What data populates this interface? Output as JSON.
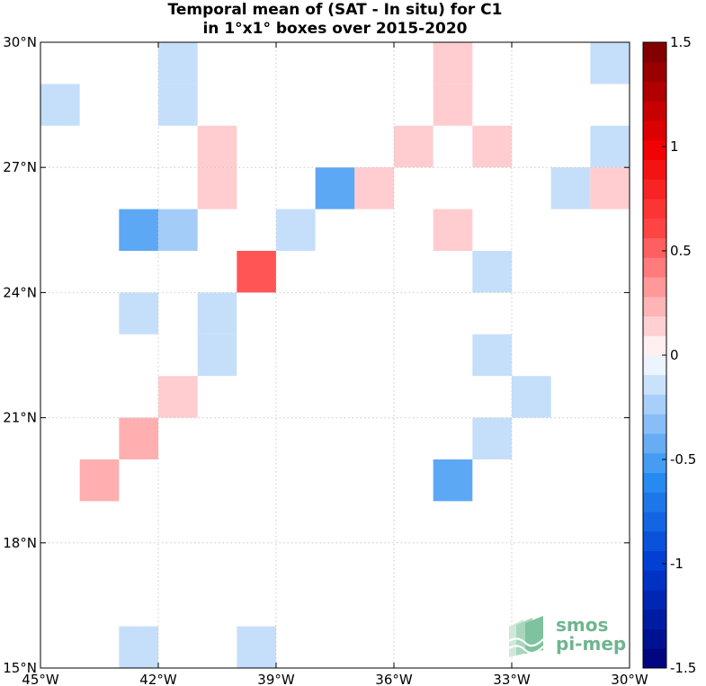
{
  "chart_data": {
    "type": "heatmap",
    "title": "Temporal mean of (SAT - In situ) for C1",
    "subtitle": "in 1°x1° boxes over 2015-2020",
    "x_range": [
      -45,
      -30
    ],
    "y_range": [
      15,
      30
    ],
    "x_ticks": [
      {
        "value": -45,
        "label": "45°W"
      },
      {
        "value": -42,
        "label": "42°W"
      },
      {
        "value": -39,
        "label": "39°W"
      },
      {
        "value": -36,
        "label": "36°W"
      },
      {
        "value": -33,
        "label": "33°W"
      },
      {
        "value": -30,
        "label": "30°W"
      }
    ],
    "y_ticks": [
      {
        "value": 30,
        "label": "30°N"
      },
      {
        "value": 27,
        "label": "27°N"
      },
      {
        "value": 24,
        "label": "24°N"
      },
      {
        "value": 21,
        "label": "21°N"
      },
      {
        "value": 18,
        "label": "18°N"
      },
      {
        "value": 15,
        "label": "15°N"
      }
    ],
    "grid": true,
    "colorbar": {
      "range": [
        -1.5,
        1.5
      ],
      "levels": 32,
      "ticks": [
        {
          "value": 1.5,
          "label": "1.5"
        },
        {
          "value": 1,
          "label": "1"
        },
        {
          "value": 0.5,
          "label": "0.5"
        },
        {
          "value": 0,
          "label": "0"
        },
        {
          "value": -0.5,
          "label": "-0.5"
        },
        {
          "value": -1,
          "label": "-1"
        },
        {
          "value": -1.5,
          "label": "-1.5"
        }
      ]
    },
    "cells": [
      {
        "lon": -45,
        "lat": 28,
        "value": -0.15
      },
      {
        "lon": -42,
        "lat": 29,
        "value": -0.15
      },
      {
        "lon": -42,
        "lat": 28,
        "value": -0.15
      },
      {
        "lon": -35,
        "lat": 29,
        "value": 0.15
      },
      {
        "lon": -35,
        "lat": 28,
        "value": 0.15
      },
      {
        "lon": -31,
        "lat": 29,
        "value": -0.15
      },
      {
        "lon": -41,
        "lat": 27,
        "value": 0.15
      },
      {
        "lon": -41,
        "lat": 26,
        "value": 0.15
      },
      {
        "lon": -36,
        "lat": 27,
        "value": 0.15
      },
      {
        "lon": -34,
        "lat": 27,
        "value": 0.15
      },
      {
        "lon": -31,
        "lat": 27,
        "value": -0.15
      },
      {
        "lon": -38,
        "lat": 26,
        "value": -0.45
      },
      {
        "lon": -37,
        "lat": 26,
        "value": 0.15
      },
      {
        "lon": -32,
        "lat": 26,
        "value": -0.15
      },
      {
        "lon": -31,
        "lat": 26,
        "value": 0.15
      },
      {
        "lon": -43,
        "lat": 25,
        "value": -0.45
      },
      {
        "lon": -42,
        "lat": 25,
        "value": -0.25
      },
      {
        "lon": -39,
        "lat": 25,
        "value": -0.15
      },
      {
        "lon": -35,
        "lat": 25,
        "value": 0.15
      },
      {
        "lon": -40,
        "lat": 24,
        "value": 0.55
      },
      {
        "lon": -34,
        "lat": 24,
        "value": -0.15
      },
      {
        "lon": -43,
        "lat": 23,
        "value": -0.15
      },
      {
        "lon": -41,
        "lat": 23,
        "value": -0.15
      },
      {
        "lon": -41,
        "lat": 22,
        "value": -0.15
      },
      {
        "lon": -34,
        "lat": 22,
        "value": -0.15
      },
      {
        "lon": -42,
        "lat": 21,
        "value": 0.15
      },
      {
        "lon": -33,
        "lat": 21,
        "value": -0.15
      },
      {
        "lon": -43,
        "lat": 20,
        "value": 0.25
      },
      {
        "lon": -34,
        "lat": 20,
        "value": -0.15
      },
      {
        "lon": -44,
        "lat": 19,
        "value": 0.25
      },
      {
        "lon": -35,
        "lat": 19,
        "value": -0.45
      },
      {
        "lon": -43,
        "lat": 15,
        "value": -0.15
      },
      {
        "lon": -40,
        "lat": 15,
        "value": -0.15
      }
    ]
  },
  "logo": {
    "line1": "smos",
    "line2": "pi-mep"
  }
}
